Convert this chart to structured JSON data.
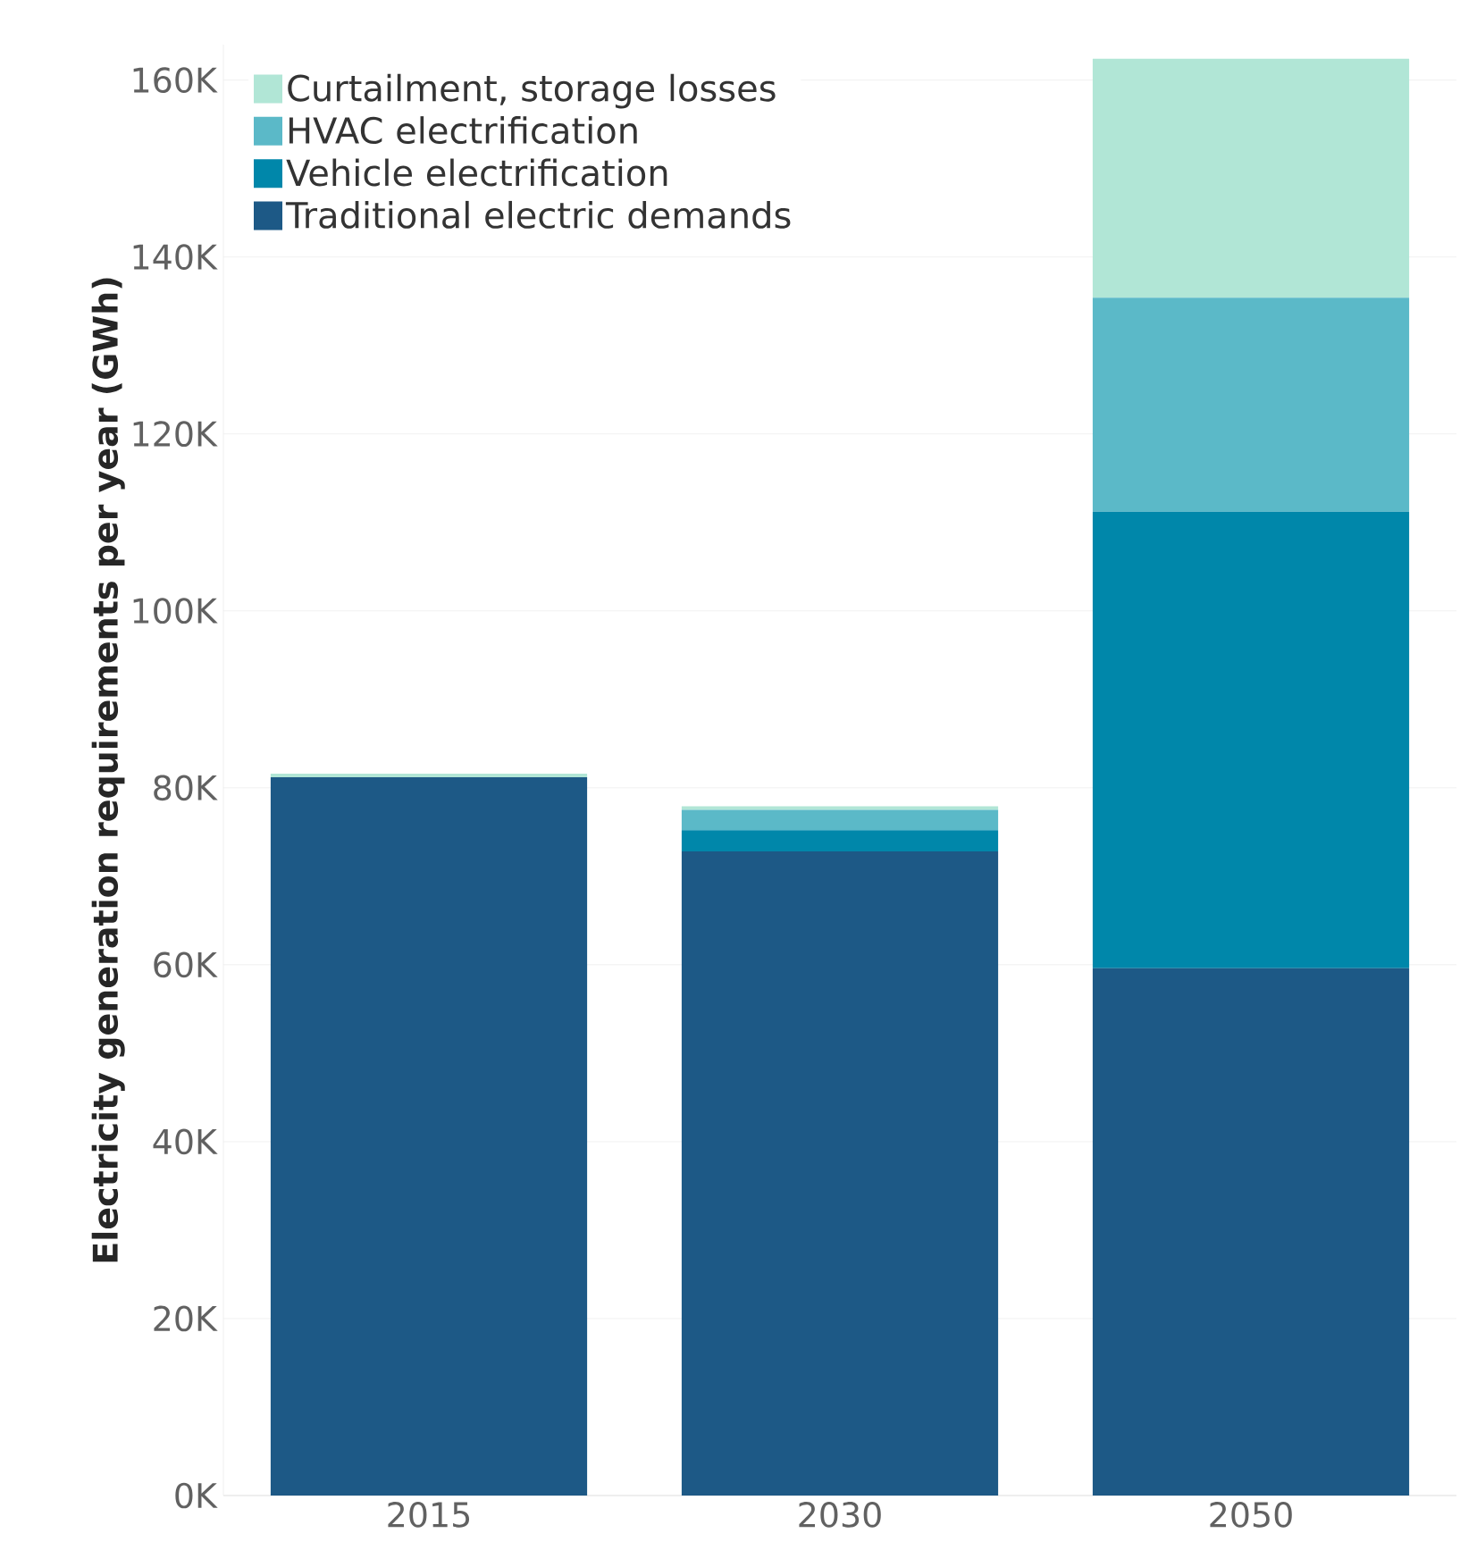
{
  "chart_data": {
    "type": "bar",
    "stacked": true,
    "ylabel": "Electricity generation requirements per year (GWh)",
    "categories": [
      "2015",
      "2030",
      "2050"
    ],
    "series": [
      {
        "name": "Traditional electric demands",
        "color": "#1d5986",
        "values": [
          81.2,
          72.8,
          59.6
        ]
      },
      {
        "name": "Vehicle electrification",
        "color": "#0087aa",
        "values": [
          0,
          2.4,
          51.6
        ]
      },
      {
        "name": "HVAC electrification",
        "color": "#5bb9c8",
        "values": [
          0,
          2.3,
          24.2
        ]
      },
      {
        "name": "Curtailment, storage losses",
        "color": "#b1e6d6",
        "values": [
          0.4,
          0.4,
          27
        ]
      }
    ],
    "ylim": [
      0,
      164
    ],
    "yticks": [
      {
        "value": 0,
        "label": "0K"
      },
      {
        "value": 20,
        "label": "20K"
      },
      {
        "value": 40,
        "label": "40K"
      },
      {
        "value": 60,
        "label": "60K"
      },
      {
        "value": 80,
        "label": "80K"
      },
      {
        "value": 100,
        "label": "100K"
      },
      {
        "value": 120,
        "label": "120K"
      },
      {
        "value": 140,
        "label": "140K"
      },
      {
        "value": 160,
        "label": "160K"
      }
    ],
    "grid": "y",
    "legend": "top left"
  }
}
